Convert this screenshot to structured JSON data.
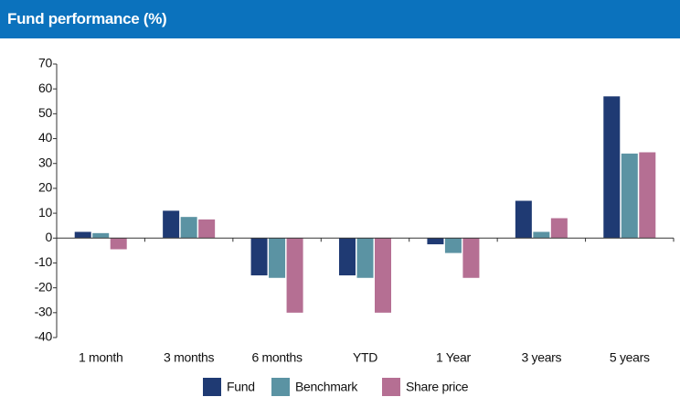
{
  "chart_data": {
    "type": "bar",
    "title": "Fund performance (%)",
    "categories": [
      "1 month",
      "3 months",
      "6 months",
      "YTD",
      "1 Year",
      "3 years",
      "5 years"
    ],
    "series": [
      {
        "name": "Fund",
        "color": "#1f3a73",
        "values": [
          2.5,
          11,
          -15,
          -15,
          -2.5,
          15,
          57
        ]
      },
      {
        "name": "Benchmark",
        "color": "#5b93a3",
        "values": [
          2,
          8.5,
          -16,
          -16,
          -6,
          2.5,
          34
        ]
      },
      {
        "name": "Share price",
        "color": "#b56f93",
        "values": [
          -4.5,
          7.5,
          -30,
          -30,
          -16,
          8,
          34.5
        ]
      }
    ],
    "ylim": [
      -40,
      70
    ],
    "yticks": [
      -40,
      -30,
      -20,
      -10,
      0,
      10,
      20,
      30,
      40,
      50,
      60,
      70
    ],
    "grid": false,
    "legend": "bottom"
  }
}
